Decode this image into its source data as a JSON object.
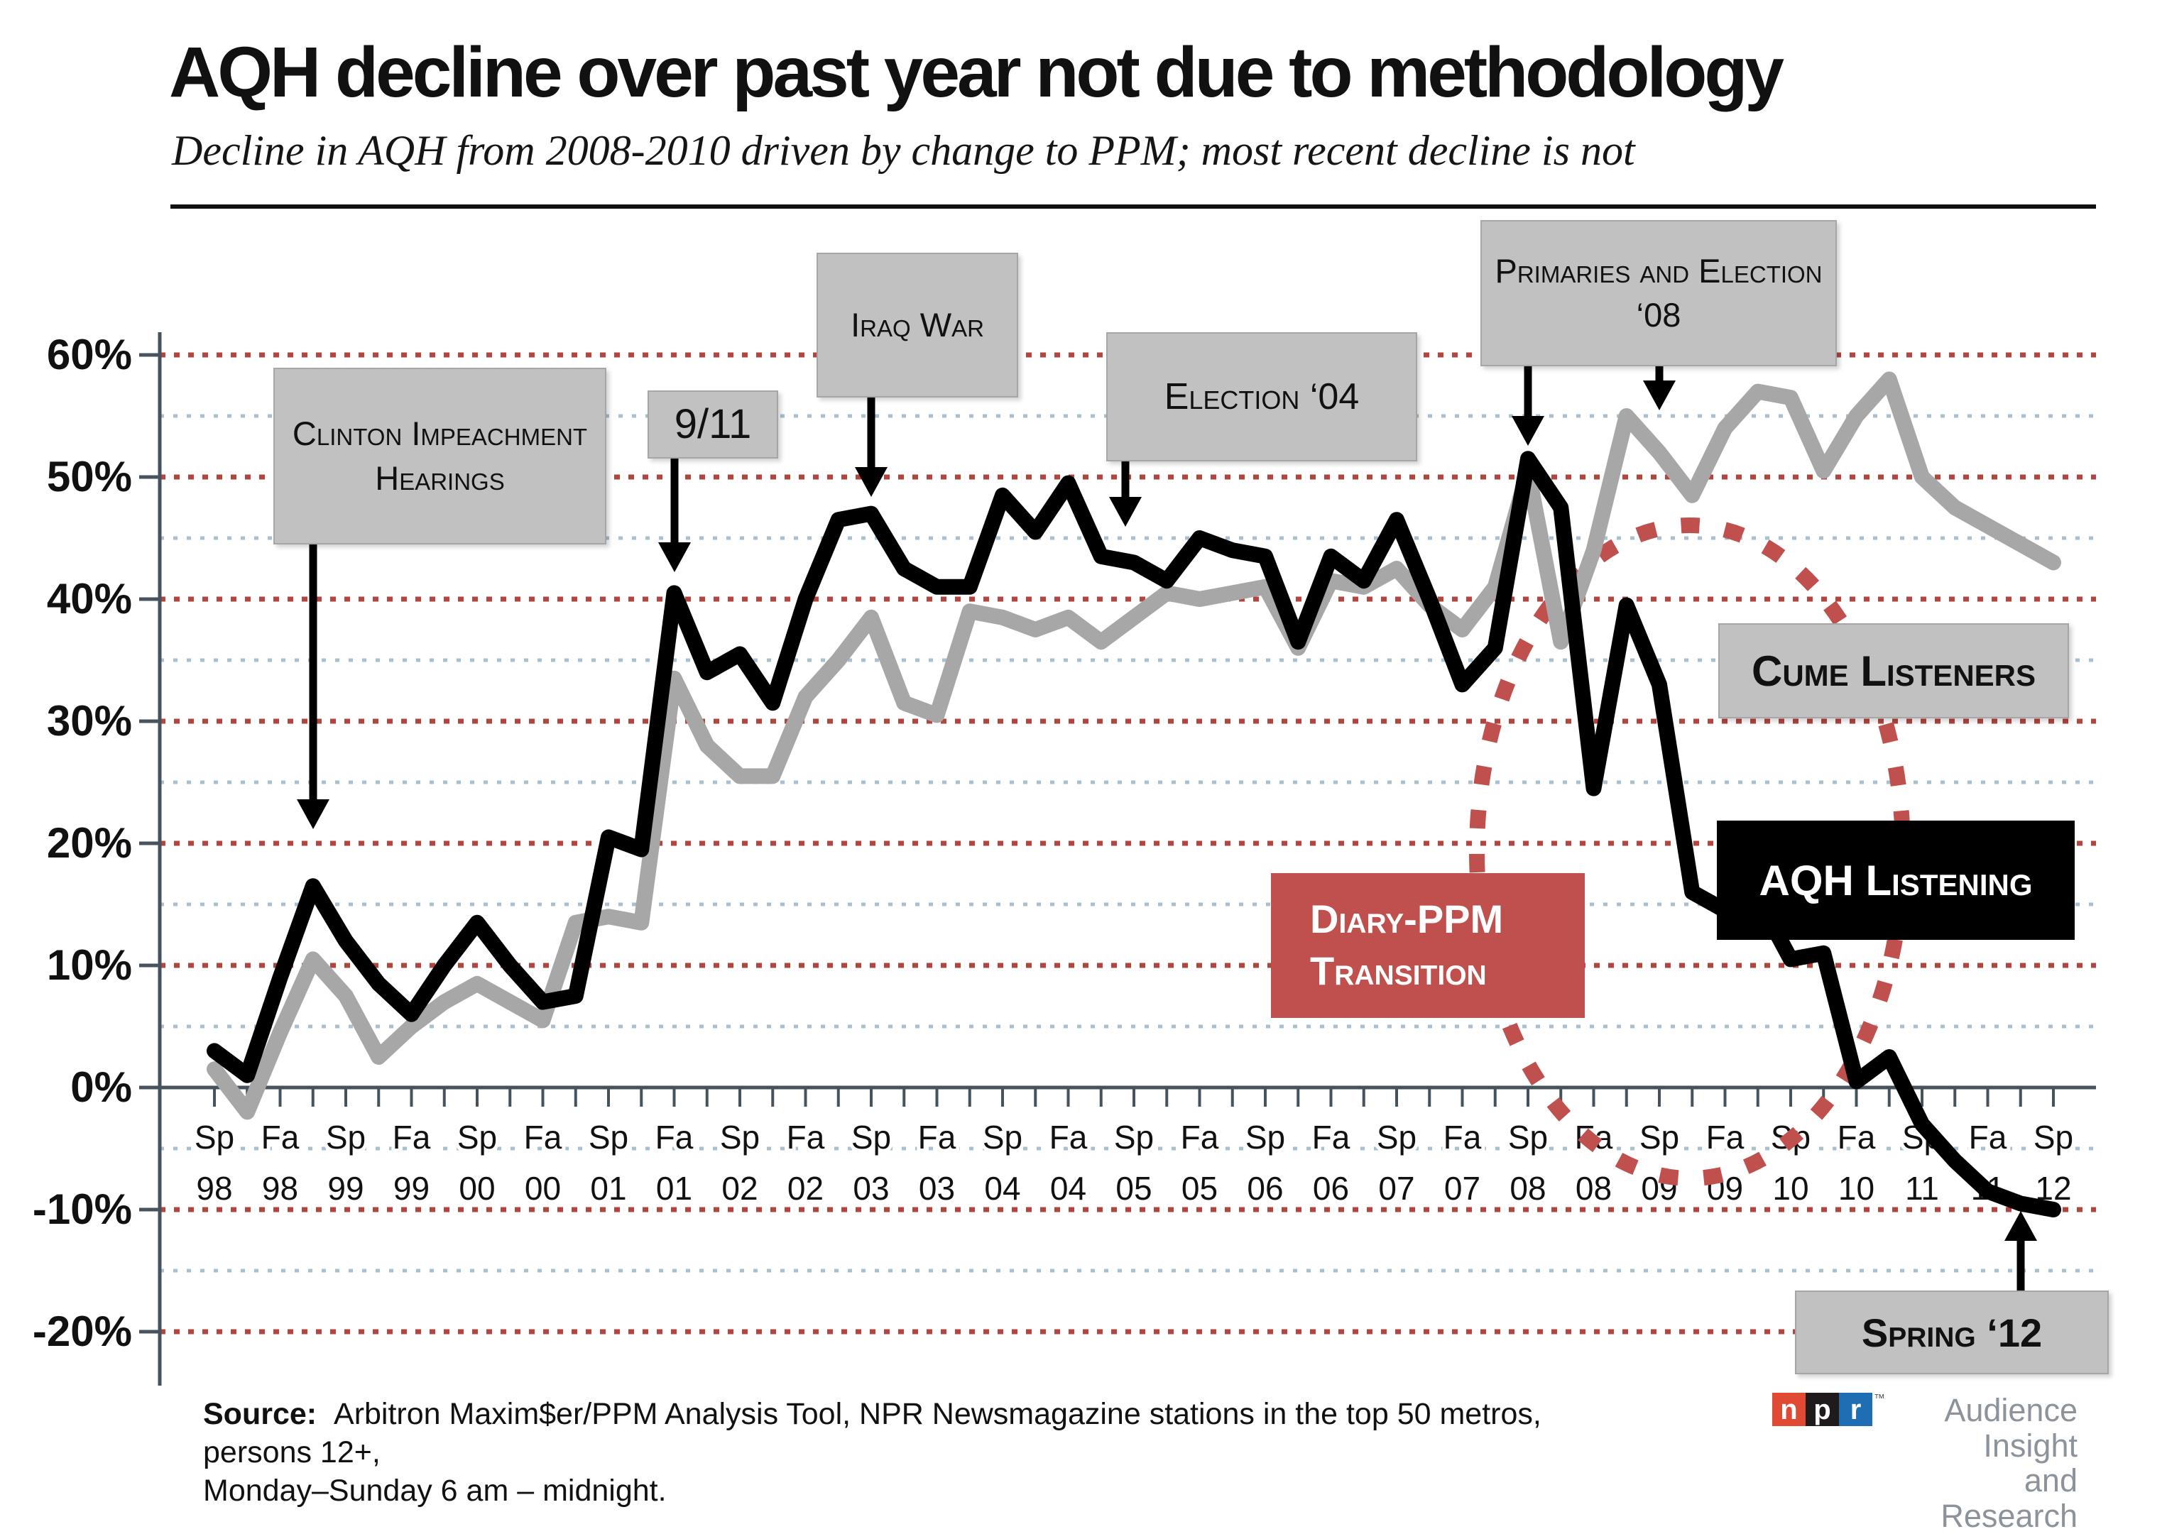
{
  "title": "AQH decline over past year not due to methodology",
  "subtitle": "Decline in AQH from 2008-2010 driven by change to PPM; most recent decline is not",
  "chart_data": {
    "type": "line",
    "x_labels": [
      "Sp 98",
      "Fa 98",
      "Sp 99",
      "Fa 99",
      "Sp 00",
      "Fa 00",
      "Sp 01",
      "Fa 01",
      "Sp 02",
      "Fa 02",
      "Sp 03",
      "Fa 03",
      "Sp 04",
      "Fa 04",
      "Sp 05",
      "Fa 05",
      "Sp 06",
      "Fa 06",
      "Sp 07",
      "Fa 07",
      "Sp 08",
      "Fa 08",
      "Sp 09",
      "Fa 09",
      "Sp 10",
      "Fa 10",
      "Sp 11",
      "Fa 11",
      "Sp 12"
    ],
    "points_per_label_interval": 2,
    "y_ticks": [
      "60%",
      "50%",
      "40%",
      "30%",
      "20%",
      "10%",
      "0%",
      "-10%",
      "-20%"
    ],
    "ylim": [
      -20,
      60
    ],
    "grid_major": [
      60,
      50,
      40,
      30,
      20,
      10,
      -10,
      -20
    ],
    "grid_minor": [
      55,
      45,
      35,
      25,
      15,
      5,
      -5,
      -15
    ],
    "series": [
      {
        "name": "AQH Listening",
        "color": "#000000",
        "values": [
          3,
          1,
          9,
          16.5,
          12,
          8.5,
          6,
          10,
          13.5,
          10,
          7,
          7.5,
          20.5,
          19.5,
          40.5,
          34,
          35.5,
          31.5,
          40,
          46.5,
          47,
          42.5,
          41,
          41,
          48.5,
          45.5,
          49.5,
          43.5,
          43,
          41.5,
          45,
          44,
          43.5,
          36.5,
          43.5,
          41.5,
          46.5,
          40,
          33,
          36,
          51.5,
          47.5,
          24.5,
          39.5,
          33,
          16,
          14.5,
          15.5,
          10.5,
          11,
          0.5,
          2.5,
          -3,
          -6,
          -8.5,
          -9.5,
          -10
        ]
      },
      {
        "name": "Cume Listeners",
        "color": "#a7a7a7",
        "values": [
          1.5,
          -2,
          4.5,
          10.5,
          7.5,
          2.5,
          5,
          7,
          8.5,
          7,
          5.5,
          13.5,
          14,
          13.5,
          33.5,
          28,
          25.5,
          25.5,
          32,
          35,
          38.5,
          31.5,
          30.5,
          39,
          38.5,
          37.5,
          38.5,
          36.5,
          38.5,
          40.5,
          40,
          40.5,
          41,
          36,
          41.5,
          41,
          42.5,
          39.5,
          37.5,
          41,
          50.5,
          36.5,
          44,
          55,
          52,
          48.5,
          54,
          57,
          56.5,
          50.5,
          55,
          58,
          50,
          47.5,
          46,
          44.5,
          43
        ]
      }
    ]
  },
  "annotations": {
    "clinton": "Clinton Impeachment Hearings",
    "nine_eleven": "9/11",
    "iraq_war": "Iraq War",
    "election_04": "Election ‘04",
    "primaries_08": "Primaries and Election ‘08",
    "cume_label": "Cume Listeners",
    "aqh_label": "AQH Listening",
    "diary_ppm": "Diary-PPM Transition",
    "spring_12": "Spring ‘12"
  },
  "colors": {
    "line_black": "#000000",
    "line_gray": "#a7a7a7",
    "grid_red": "#b4443e",
    "grid_minor": "#a8c0cf",
    "axis": "#46535d",
    "accent_red": "#c0504d",
    "box_gray": "#c1c1c1"
  },
  "source": {
    "label": "Source:",
    "line1": "Arbitron Maxim$er/PPM Analysis Tool, NPR Newsmagazine stations in the top 50 metros, persons 12+,",
    "line2": "Monday–Sunday 6 am – midnight."
  },
  "logo": {
    "n": "n",
    "p": "p",
    "r": "r",
    "trademark": "™",
    "org_line1": "Audience Insight",
    "org_line2": "and Research"
  }
}
